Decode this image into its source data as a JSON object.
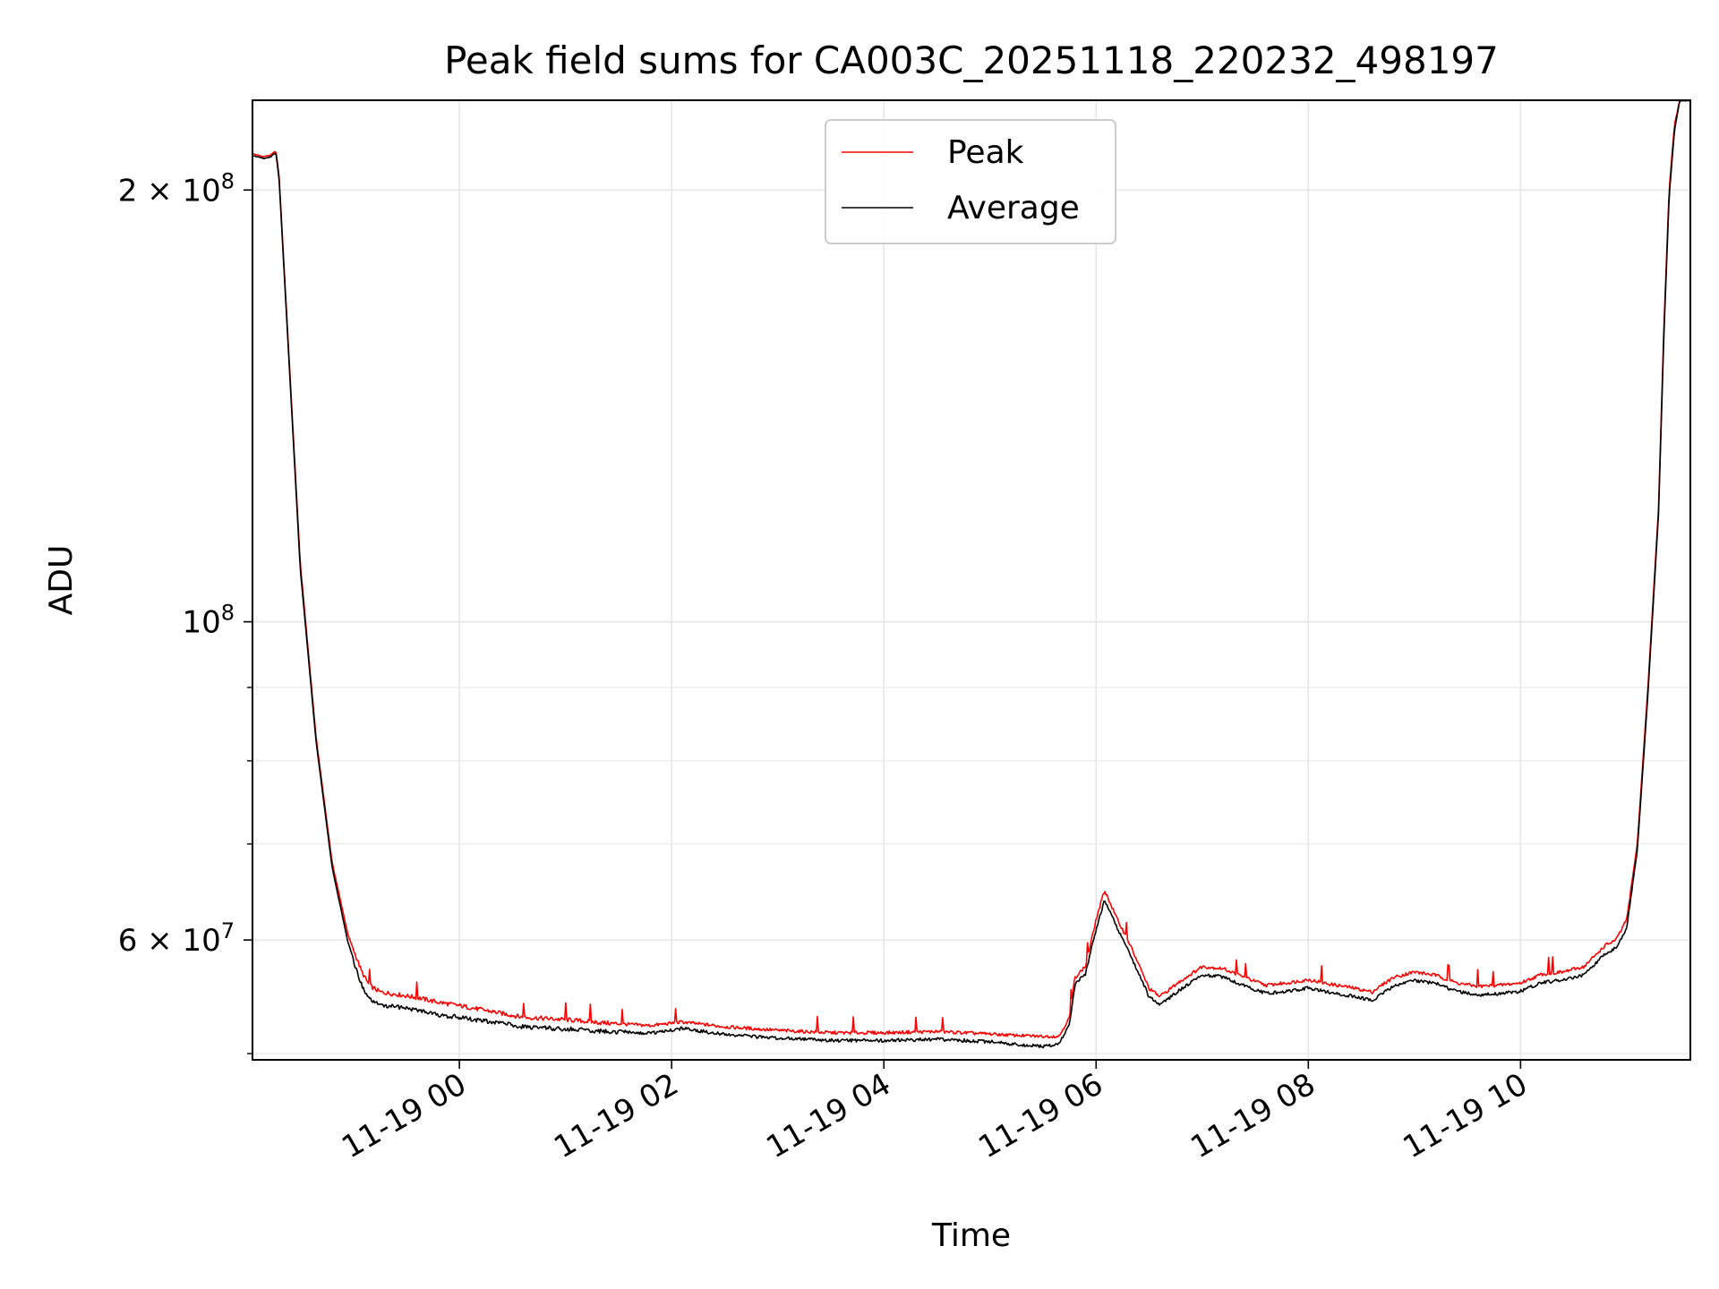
{
  "chart_data": {
    "type": "line",
    "title": "Peak field sums for CA003C_20251118_220232_498197",
    "xlabel": "Time",
    "ylabel": "ADU",
    "yscale": "log",
    "ylim": [
      49500000,
      231000000
    ],
    "xlim_hours": [
      -1.95,
      11.6
    ],
    "x_unit": "hours relative to 11-19 00:00",
    "grid": true,
    "legend_position": "upper center",
    "x_ticks": [
      {
        "value": 0,
        "label": "11-19 00"
      },
      {
        "value": 2,
        "label": "11-19 02"
      },
      {
        "value": 4,
        "label": "11-19 04"
      },
      {
        "value": 6,
        "label": "11-19 06"
      },
      {
        "value": 8,
        "label": "11-19 08"
      },
      {
        "value": 10,
        "label": "11-19 10"
      }
    ],
    "y_major_ticks": [
      {
        "value": 200000000,
        "base": "2 × 10",
        "exp": "8"
      },
      {
        "value": 100000000,
        "base": "10",
        "exp": "8"
      },
      {
        "value": 60000000,
        "base": "6 × 10",
        "exp": "7"
      }
    ],
    "y_minor_ticks": [
      50000000,
      70000000,
      80000000,
      90000000
    ],
    "series": [
      {
        "name": "Peak",
        "color": "#ff0000",
        "x": [
          -1.95,
          -1.85,
          -1.78,
          -1.73,
          -1.7,
          -1.62,
          -1.5,
          -1.35,
          -1.2,
          -1.05,
          -0.92,
          -0.85,
          -0.75,
          -0.6,
          -0.4,
          -0.2,
          0,
          0.3,
          0.6,
          1,
          1.4,
          1.8,
          2.1,
          2.5,
          3,
          3.5,
          4,
          4.5,
          5,
          5.2,
          5.5,
          5.65,
          5.75,
          5.8,
          5.9,
          6,
          6.08,
          6.2,
          6.3,
          6.5,
          6.6,
          6.8,
          7,
          7.2,
          7.4,
          7.6,
          7.8,
          8,
          8.2,
          8.4,
          8.6,
          8.8,
          9,
          9.2,
          9.4,
          9.6,
          9.8,
          10,
          10.2,
          10.4,
          10.6,
          10.7,
          10.8,
          10.9,
          11,
          11.1,
          11.2,
          11.3,
          11.35,
          11.4,
          11.45,
          11.5,
          11.6
        ],
        "y": [
          212000000,
          211000000,
          211500000,
          213000000,
          205000000,
          160000000,
          110000000,
          83000000,
          68000000,
          60500000,
          57000000,
          55800000,
          55200000,
          55000000,
          54700000,
          54300000,
          54000000,
          53500000,
          53000000,
          52800000,
          52500000,
          52300000,
          52600000,
          52200000,
          51900000,
          51700000,
          51700000,
          51800000,
          51600000,
          51500000,
          51400000,
          51400000,
          53000000,
          56500000,
          57500000,
          62000000,
          65000000,
          62000000,
          60000000,
          55500000,
          54800000,
          56200000,
          57500000,
          57300000,
          56500000,
          55800000,
          56000000,
          56300000,
          55900000,
          55600000,
          55200000,
          56500000,
          57000000,
          56700000,
          56000000,
          55700000,
          55800000,
          56000000,
          56800000,
          57000000,
          57500000,
          58500000,
          59500000,
          60000000,
          62000000,
          70000000,
          90000000,
          120000000,
          160000000,
          200000000,
          222000000,
          231000000,
          231000000
        ]
      },
      {
        "name": "Average",
        "color": "#000000",
        "x": [
          -1.95,
          -1.85,
          -1.78,
          -1.73,
          -1.7,
          -1.62,
          -1.5,
          -1.35,
          -1.2,
          -1.05,
          -0.92,
          -0.85,
          -0.75,
          -0.6,
          -0.4,
          -0.2,
          0,
          0.3,
          0.6,
          1,
          1.4,
          1.8,
          2.1,
          2.5,
          3,
          3.5,
          4,
          4.5,
          5,
          5.2,
          5.5,
          5.65,
          5.75,
          5.8,
          5.9,
          6,
          6.08,
          6.2,
          6.3,
          6.5,
          6.6,
          6.8,
          7,
          7.2,
          7.4,
          7.6,
          7.8,
          8,
          8.2,
          8.4,
          8.6,
          8.8,
          9,
          9.2,
          9.4,
          9.6,
          9.8,
          10,
          10.2,
          10.4,
          10.6,
          10.7,
          10.8,
          10.9,
          11,
          11.1,
          11.2,
          11.3,
          11.35,
          11.4,
          11.45,
          11.5,
          11.6
        ],
        "y": [
          211500000,
          210500000,
          211000000,
          212500000,
          204000000,
          159000000,
          109000000,
          82500000,
          67500000,
          59800000,
          56000000,
          54800000,
          54200000,
          54100000,
          53800000,
          53400000,
          53200000,
          52800000,
          52400000,
          52200000,
          52000000,
          51800000,
          52200000,
          51700000,
          51400000,
          51200000,
          51200000,
          51300000,
          51100000,
          50900000,
          50700000,
          50900000,
          52600000,
          56000000,
          57000000,
          61200000,
          64200000,
          61300000,
          59300000,
          54900000,
          54200000,
          55600000,
          56900000,
          56700000,
          55900000,
          55200000,
          55400000,
          55700000,
          55300000,
          55000000,
          54600000,
          55900000,
          56400000,
          56100000,
          55400000,
          55100000,
          55200000,
          55400000,
          56200000,
          56400000,
          56900000,
          57900000,
          58900000,
          59400000,
          61400000,
          69300000,
          89000000,
          119000000,
          158000000,
          198000000,
          220000000,
          231000000,
          231000000
        ]
      }
    ]
  }
}
